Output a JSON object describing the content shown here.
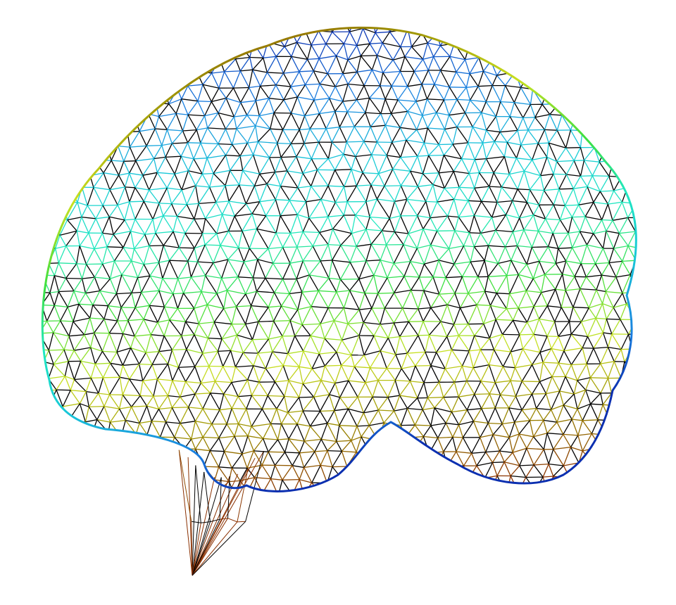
{
  "figure": {
    "subject": "brain-surface-mesh",
    "render_style": "wireframe",
    "background_color": "#ffffff",
    "edge_overlay_color": "#000000",
    "colormap": [
      "#0b2fb0",
      "#1a7fe0",
      "#19c8d8",
      "#20e8c0",
      "#3ce040",
      "#c8e020",
      "#9a8a00",
      "#8a3000"
    ]
  }
}
